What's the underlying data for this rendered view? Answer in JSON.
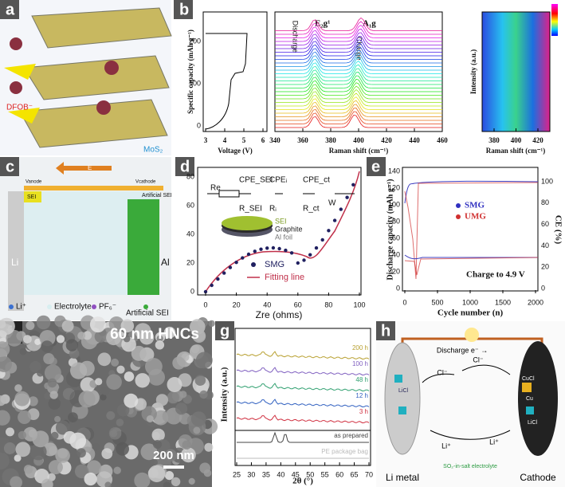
{
  "panels": {
    "a": {
      "label": "a",
      "molecule": "DFOB⁻",
      "layer": "MoS₂"
    },
    "b": {
      "label": "b",
      "left": {
        "ylabel": "Specific capacity (mAh g⁻¹)",
        "yticks": [
          "0",
          "100",
          "200"
        ],
        "xlabel": "Voltage (V)",
        "xticks": [
          "3",
          "4",
          "5",
          "6"
        ],
        "discharge": "Discharge",
        "charge": "Charge"
      },
      "middle": {
        "peak1": "E₂g¹",
        "peak2": "A₁g",
        "xlabel": "Raman shift (cm⁻¹)",
        "xticks": [
          "340",
          "360",
          "380",
          "400",
          "420",
          "440",
          "460"
        ]
      },
      "right": {
        "ylabel": "Intensity (a.u.)",
        "xlabel": "Raman shift (cm⁻¹)",
        "xticks": [
          "380",
          "400",
          "420"
        ]
      }
    },
    "c": {
      "label": "c",
      "field": "E",
      "anode": "Vanode",
      "cathode": "Vcathode",
      "sei": "SEI",
      "artificial_sei_top": "Artificial SEI",
      "li": "Li",
      "al": "Al",
      "legend": [
        "Li⁺",
        "Electrolyte",
        "PF₆⁻",
        "Artificial SEI"
      ]
    },
    "d": {
      "label": "d",
      "xlabel": "Zre (ohms)",
      "xticks": [
        "0",
        "20",
        "40",
        "60",
        "80",
        "100"
      ],
      "yticks": [
        "0",
        "20",
        "40",
        "60",
        "80"
      ],
      "circuit": [
        "Re",
        "CPE_SEI",
        "R_SEI",
        "CPEᵢ",
        "Rᵢ",
        "CPE_ct",
        "R_ct",
        "W"
      ],
      "layers": [
        "SEI",
        "Graphite",
        "Al foil"
      ],
      "legend": [
        "SMG",
        "Fitting line"
      ]
    },
    "e": {
      "label": "e",
      "ylabel": "Discharge capacity (mAh g⁻¹)",
      "y2label": "CE (%)",
      "xlabel": "Cycle number (n)",
      "xticks": [
        "0",
        "500",
        "1000",
        "1500",
        "2000"
      ],
      "yticks": [
        "0",
        "20",
        "40",
        "60",
        "80",
        "100",
        "120",
        "140"
      ],
      "y2ticks": [
        "0",
        "20",
        "40",
        "60",
        "80",
        "100"
      ],
      "legend": [
        "SMG",
        "UMG"
      ],
      "note": "Charge to 4.9 V"
    },
    "f": {
      "label": "f",
      "caption": "60 nm HNCs",
      "scale": "200 nm"
    },
    "g": {
      "label": "g",
      "ylabel": "Intensity (a.u.)",
      "xlabel": "2θ (°)",
      "xticks": [
        "25",
        "30",
        "35",
        "40",
        "45",
        "50",
        "55",
        "60",
        "65",
        "70"
      ],
      "curves": [
        "200 h",
        "100 h",
        "48 h",
        "12 h",
        "3 h"
      ],
      "bottom": [
        "as prepared",
        "PE package bag"
      ]
    },
    "h": {
      "label": "h",
      "discharge": "Discharge e⁻ →",
      "ion1": "Cl⁻",
      "ion2": "Cl⁻",
      "li1": "Li⁺",
      "li2": "Li⁺",
      "anode": "Li metal",
      "cathode": "Cathode",
      "electrolyte": "SO₂-in-salt electrolyte",
      "species": [
        "LiCl",
        "CuCl",
        "Cu",
        "LiCl"
      ]
    }
  }
}
